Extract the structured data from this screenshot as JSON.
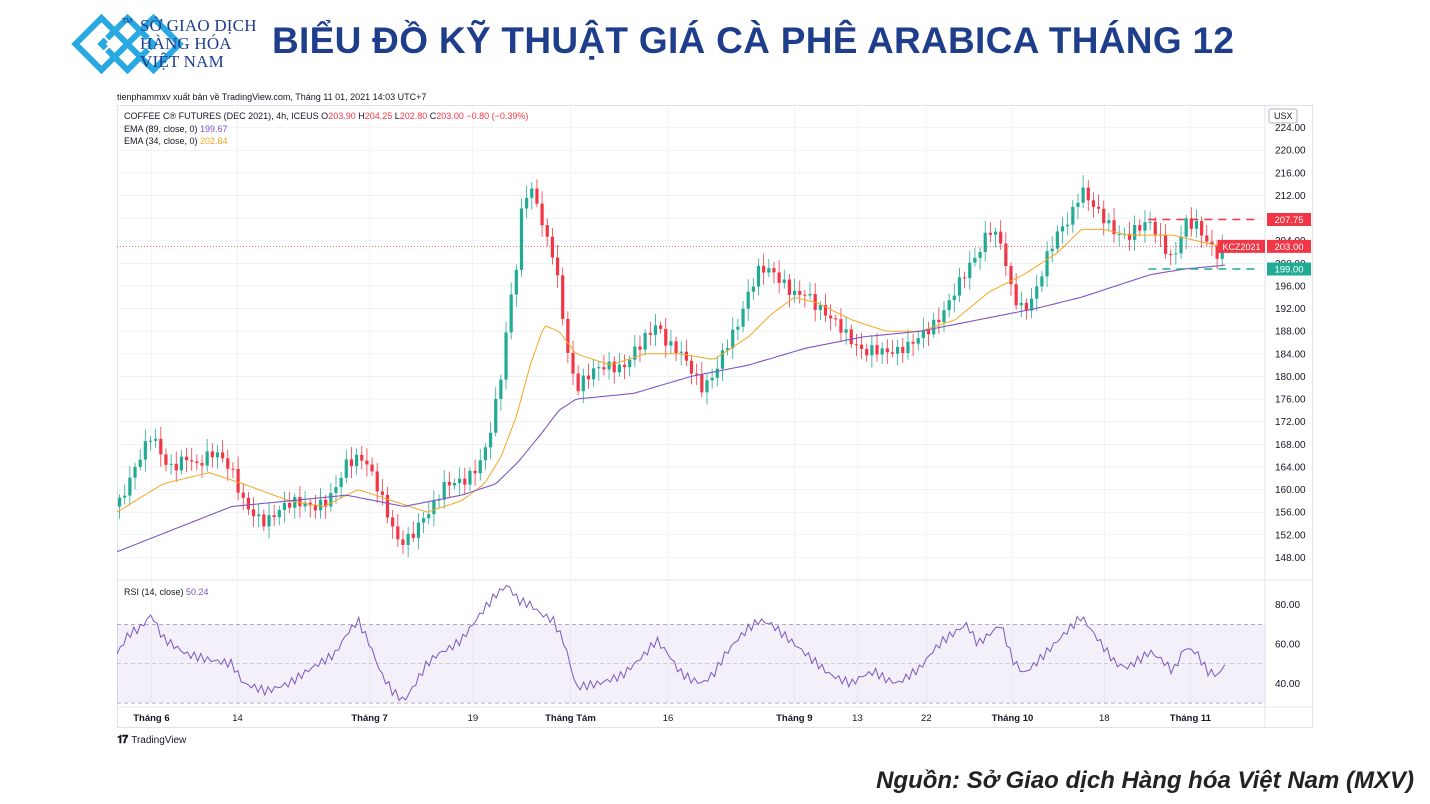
{
  "header": {
    "logo_lines": [
      "SỞ GIAO DỊCH",
      "HÀNG HÓA",
      "VIỆT NAM"
    ],
    "logo_tm": "TM",
    "title": "BIỂU ĐỒ KỸ THUẬT GIÁ CÀ PHÊ ARABICA THÁNG 12",
    "brand_color": "#1e3e8c",
    "logo_color": "#29a9e1"
  },
  "published_line": "tienphammxv xuất bản về TradingView.com, Tháng 11 01, 2021 14:03 UTC+7",
  "tradingview_label": "TradingView",
  "source": "Nguồn: Sở Giao dịch Hàng hóa Việt Nam (MXV)",
  "chart_data": {
    "type": "line",
    "symbol_line": "COFFEE C® FUTURES (DEC 2021), 4h, ICEUS",
    "ohlc": [
      {
        "key": "O",
        "value": "203.90"
      },
      {
        "key": "H",
        "value": "204.25"
      },
      {
        "key": "L",
        "value": "202.80"
      },
      {
        "key": "C",
        "value": "203.00 −0.80 (−0.39%)"
      }
    ],
    "indicators": [
      {
        "label": "EMA (89, close, 0)",
        "value": "199.67",
        "color": "#7e57c2"
      },
      {
        "label": "EMA (34, close, 0)",
        "value": "202.84",
        "color": "#f5a623"
      }
    ],
    "currency": "USX",
    "ylim": [
      144,
      228
    ],
    "yticks": [
      "148.00",
      "152.00",
      "156.00",
      "160.00",
      "164.00",
      "168.00",
      "172.00",
      "176.00",
      "180.00",
      "184.00",
      "188.00",
      "192.00",
      "196.00",
      "200.00",
      "204.00",
      "208.00",
      "212.00",
      "216.00",
      "220.00",
      "224.00"
    ],
    "x_ticks": [
      {
        "label": "Tháng 6",
        "bold": true,
        "t": 0.03
      },
      {
        "label": "14",
        "bold": false,
        "t": 0.105
      },
      {
        "label": "Tháng 7",
        "bold": true,
        "t": 0.22
      },
      {
        "label": "19",
        "bold": false,
        "t": 0.31
      },
      {
        "label": "Tháng Tám",
        "bold": true,
        "t": 0.395
      },
      {
        "label": "16",
        "bold": false,
        "t": 0.48
      },
      {
        "label": "Tháng 9",
        "bold": true,
        "t": 0.59
      },
      {
        "label": "13",
        "bold": false,
        "t": 0.645
      },
      {
        "label": "22",
        "bold": false,
        "t": 0.705
      },
      {
        "label": "Tháng 10",
        "bold": true,
        "t": 0.78
      },
      {
        "label": "18",
        "bold": false,
        "t": 0.86
      },
      {
        "label": "Tháng 11",
        "bold": true,
        "t": 0.935
      }
    ],
    "price_anchors": [
      [
        0.0,
        157
      ],
      [
        0.01,
        160
      ],
      [
        0.022,
        165
      ],
      [
        0.03,
        169
      ],
      [
        0.045,
        165
      ],
      [
        0.06,
        167
      ],
      [
        0.07,
        164
      ],
      [
        0.085,
        165
      ],
      [
        0.1,
        163
      ],
      [
        0.11,
        159
      ],
      [
        0.13,
        155
      ],
      [
        0.15,
        156
      ],
      [
        0.17,
        157
      ],
      [
        0.185,
        160
      ],
      [
        0.2,
        165
      ],
      [
        0.215,
        164
      ],
      [
        0.225,
        160
      ],
      [
        0.235,
        156
      ],
      [
        0.245,
        152
      ],
      [
        0.255,
        153
      ],
      [
        0.265,
        155
      ],
      [
        0.275,
        156
      ],
      [
        0.285,
        159
      ],
      [
        0.3,
        161
      ],
      [
        0.31,
        164
      ],
      [
        0.32,
        168
      ],
      [
        0.328,
        174
      ],
      [
        0.336,
        182
      ],
      [
        0.342,
        192
      ],
      [
        0.348,
        198
      ],
      [
        0.352,
        207
      ],
      [
        0.358,
        212
      ],
      [
        0.365,
        211
      ],
      [
        0.372,
        206
      ],
      [
        0.38,
        203
      ],
      [
        0.386,
        196
      ],
      [
        0.392,
        186
      ],
      [
        0.4,
        178
      ],
      [
        0.41,
        179
      ],
      [
        0.42,
        180
      ],
      [
        0.43,
        181
      ],
      [
        0.44,
        182
      ],
      [
        0.45,
        186
      ],
      [
        0.46,
        188
      ],
      [
        0.47,
        189
      ],
      [
        0.48,
        184
      ],
      [
        0.49,
        183
      ],
      [
        0.5,
        181
      ],
      [
        0.51,
        179
      ],
      [
        0.52,
        182
      ],
      [
        0.53,
        186
      ],
      [
        0.54,
        188
      ],
      [
        0.55,
        193
      ],
      [
        0.56,
        198
      ],
      [
        0.57,
        199
      ],
      [
        0.58,
        198
      ],
      [
        0.59,
        196
      ],
      [
        0.6,
        195
      ],
      [
        0.61,
        191
      ],
      [
        0.62,
        189
      ],
      [
        0.63,
        188
      ],
      [
        0.64,
        187
      ],
      [
        0.65,
        186
      ],
      [
        0.66,
        186
      ],
      [
        0.67,
        184
      ],
      [
        0.68,
        183
      ],
      [
        0.69,
        184
      ],
      [
        0.7,
        187
      ],
      [
        0.71,
        190
      ],
      [
        0.72,
        193
      ],
      [
        0.73,
        196
      ],
      [
        0.74,
        198
      ],
      [
        0.75,
        200
      ],
      [
        0.76,
        205
      ],
      [
        0.77,
        204
      ],
      [
        0.78,
        196
      ],
      [
        0.79,
        193
      ],
      [
        0.8,
        195
      ],
      [
        0.81,
        200
      ],
      [
        0.82,
        204
      ],
      [
        0.83,
        207
      ],
      [
        0.84,
        214
      ],
      [
        0.85,
        212
      ],
      [
        0.86,
        209
      ],
      [
        0.87,
        205
      ],
      [
        0.88,
        203
      ],
      [
        0.89,
        205
      ],
      [
        0.9,
        207
      ],
      [
        0.91,
        205
      ],
      [
        0.92,
        202
      ],
      [
        0.93,
        208
      ],
      [
        0.94,
        206
      ],
      [
        0.95,
        202
      ],
      [
        0.96,
        200
      ],
      [
        0.965,
        203
      ]
    ],
    "ema34_anchors": [
      [
        0.0,
        156
      ],
      [
        0.04,
        161
      ],
      [
        0.08,
        163
      ],
      [
        0.11,
        161
      ],
      [
        0.15,
        158
      ],
      [
        0.18,
        157
      ],
      [
        0.21,
        160
      ],
      [
        0.24,
        158
      ],
      [
        0.27,
        156
      ],
      [
        0.3,
        158
      ],
      [
        0.32,
        161
      ],
      [
        0.335,
        166
      ],
      [
        0.348,
        173
      ],
      [
        0.36,
        182
      ],
      [
        0.372,
        189
      ],
      [
        0.385,
        188
      ],
      [
        0.4,
        184
      ],
      [
        0.43,
        182
      ],
      [
        0.46,
        184
      ],
      [
        0.49,
        184
      ],
      [
        0.52,
        183
      ],
      [
        0.55,
        187
      ],
      [
        0.57,
        191
      ],
      [
        0.59,
        194
      ],
      [
        0.61,
        193
      ],
      [
        0.64,
        190
      ],
      [
        0.67,
        188
      ],
      [
        0.7,
        188
      ],
      [
        0.73,
        190
      ],
      [
        0.76,
        195
      ],
      [
        0.79,
        198
      ],
      [
        0.82,
        202
      ],
      [
        0.84,
        206
      ],
      [
        0.86,
        206
      ],
      [
        0.88,
        205
      ],
      [
        0.9,
        205
      ],
      [
        0.92,
        205
      ],
      [
        0.94,
        204
      ],
      [
        0.965,
        202.84
      ]
    ],
    "ema89_anchors": [
      [
        0.0,
        149
      ],
      [
        0.05,
        153
      ],
      [
        0.1,
        157
      ],
      [
        0.15,
        158
      ],
      [
        0.2,
        159
      ],
      [
        0.25,
        157
      ],
      [
        0.3,
        159
      ],
      [
        0.33,
        161
      ],
      [
        0.35,
        165
      ],
      [
        0.37,
        170
      ],
      [
        0.385,
        174
      ],
      [
        0.4,
        176
      ],
      [
        0.45,
        177
      ],
      [
        0.5,
        180
      ],
      [
        0.55,
        182
      ],
      [
        0.6,
        185
      ],
      [
        0.65,
        187
      ],
      [
        0.7,
        188
      ],
      [
        0.75,
        190
      ],
      [
        0.8,
        192
      ],
      [
        0.84,
        194
      ],
      [
        0.87,
        196
      ],
      [
        0.9,
        198
      ],
      [
        0.93,
        199
      ],
      [
        0.965,
        199.67
      ]
    ],
    "rsi_anchors": [
      [
        0.0,
        55
      ],
      [
        0.01,
        65
      ],
      [
        0.02,
        68
      ],
      [
        0.03,
        75
      ],
      [
        0.04,
        63
      ],
      [
        0.06,
        55
      ],
      [
        0.08,
        52
      ],
      [
        0.1,
        50
      ],
      [
        0.11,
        40
      ],
      [
        0.13,
        36
      ],
      [
        0.15,
        40
      ],
      [
        0.17,
        48
      ],
      [
        0.19,
        55
      ],
      [
        0.2,
        65
      ],
      [
        0.21,
        72
      ],
      [
        0.22,
        60
      ],
      [
        0.23,
        45
      ],
      [
        0.24,
        36
      ],
      [
        0.25,
        31
      ],
      [
        0.26,
        40
      ],
      [
        0.27,
        50
      ],
      [
        0.28,
        55
      ],
      [
        0.29,
        58
      ],
      [
        0.3,
        62
      ],
      [
        0.31,
        70
      ],
      [
        0.32,
        78
      ],
      [
        0.33,
        85
      ],
      [
        0.34,
        90
      ],
      [
        0.35,
        82
      ],
      [
        0.36,
        80
      ],
      [
        0.37,
        75
      ],
      [
        0.38,
        72
      ],
      [
        0.39,
        60
      ],
      [
        0.4,
        38
      ],
      [
        0.42,
        40
      ],
      [
        0.44,
        44
      ],
      [
        0.46,
        55
      ],
      [
        0.47,
        62
      ],
      [
        0.48,
        55
      ],
      [
        0.49,
        46
      ],
      [
        0.5,
        42
      ],
      [
        0.51,
        40
      ],
      [
        0.52,
        45
      ],
      [
        0.53,
        55
      ],
      [
        0.54,
        62
      ],
      [
        0.55,
        68
      ],
      [
        0.56,
        72
      ],
      [
        0.57,
        70
      ],
      [
        0.58,
        65
      ],
      [
        0.59,
        60
      ],
      [
        0.6,
        55
      ],
      [
        0.61,
        50
      ],
      [
        0.62,
        45
      ],
      [
        0.63,
        42
      ],
      [
        0.64,
        40
      ],
      [
        0.65,
        44
      ],
      [
        0.66,
        46
      ],
      [
        0.67,
        42
      ],
      [
        0.68,
        40
      ],
      [
        0.69,
        44
      ],
      [
        0.7,
        48
      ],
      [
        0.71,
        56
      ],
      [
        0.72,
        62
      ],
      [
        0.73,
        66
      ],
      [
        0.74,
        70
      ],
      [
        0.75,
        60
      ],
      [
        0.76,
        65
      ],
      [
        0.77,
        70
      ],
      [
        0.78,
        52
      ],
      [
        0.79,
        45
      ],
      [
        0.8,
        50
      ],
      [
        0.81,
        56
      ],
      [
        0.82,
        62
      ],
      [
        0.83,
        68
      ],
      [
        0.84,
        74
      ],
      [
        0.85,
        66
      ],
      [
        0.86,
        58
      ],
      [
        0.87,
        50
      ],
      [
        0.88,
        48
      ],
      [
        0.89,
        52
      ],
      [
        0.9,
        56
      ],
      [
        0.91,
        52
      ],
      [
        0.92,
        46
      ],
      [
        0.93,
        58
      ],
      [
        0.94,
        56
      ],
      [
        0.95,
        46
      ],
      [
        0.96,
        44
      ],
      [
        0.965,
        50.24
      ]
    ],
    "rsi": {
      "label": "RSI (14, close)",
      "value": "50.24",
      "ylim": [
        28,
        92
      ],
      "yticks": [
        "40.00",
        "60.00",
        "80.00"
      ],
      "upper": 70,
      "lower": 30,
      "middle": 50
    },
    "levels": [
      {
        "value": 207.75,
        "label": "207.75",
        "color": "#f23645"
      },
      {
        "value": 199.0,
        "label": "199.00",
        "color": "#22ab94"
      }
    ],
    "last_price": {
      "value": 203.0,
      "label": "203.00",
      "symbol": "KCZ2021",
      "color": "#f23645"
    },
    "colors": {
      "up": "#22ab94",
      "down": "#f23645",
      "grid": "#e6e9ef"
    }
  }
}
